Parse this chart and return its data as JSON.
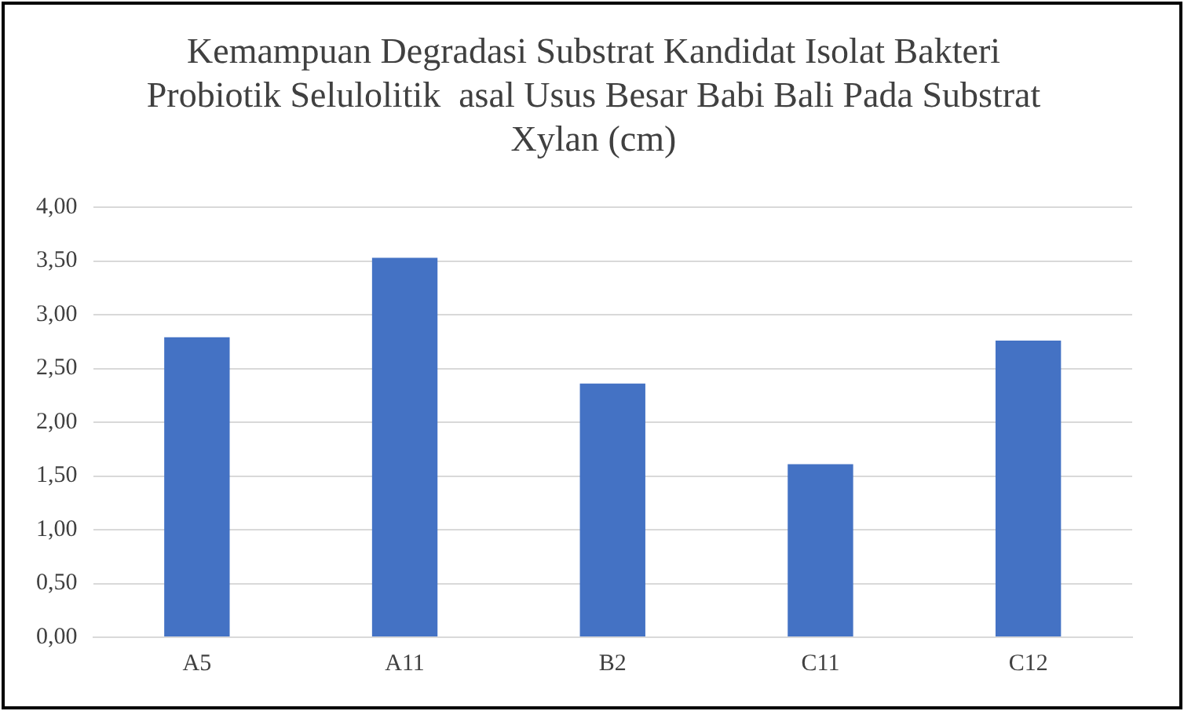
{
  "chart_data": {
    "type": "bar",
    "title": "Kemampuan Degradasi Substrat Kandidat Isolat Bakteri Probiotik Selulolitik  asal Usus Besar Babi Bali Pada Substrat Xylan (cm)",
    "categories": [
      "A5",
      "A11",
      "B2",
      "C11",
      "C12"
    ],
    "values": [
      2.79,
      3.53,
      2.36,
      1.61,
      2.76
    ],
    "color": "#4472c4",
    "ylim": [
      0,
      4
    ],
    "yticks": [
      {
        "value": 0,
        "label": "0,00"
      },
      {
        "value": 0.5,
        "label": "0,50"
      },
      {
        "value": 1,
        "label": "1,00"
      },
      {
        "value": 1.5,
        "label": "1,50"
      },
      {
        "value": 2,
        "label": "2,00"
      },
      {
        "value": 2.5,
        "label": "2,50"
      },
      {
        "value": 3,
        "label": "3,00"
      },
      {
        "value": 3.5,
        "label": "3,50"
      },
      {
        "value": 4,
        "label": "4,00"
      }
    ],
    "grid": "y"
  }
}
